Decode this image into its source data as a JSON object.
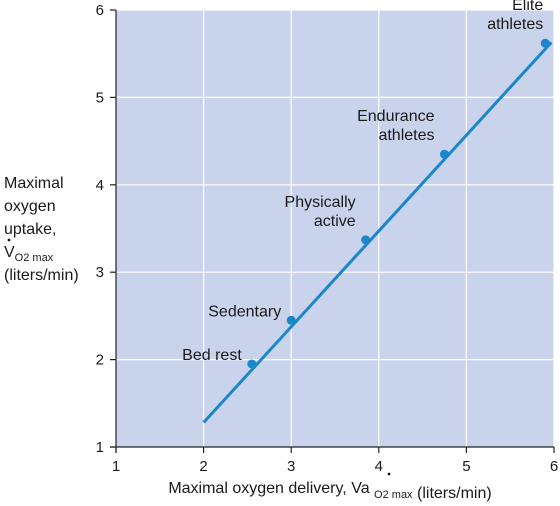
{
  "chart_data": {
    "type": "scatter",
    "xlabel": "Maximal oxygen delivery,",
    "xlabel_symbol": "Va",
    "xlabel_subscript": "O2 max",
    "xlabel_units": "(liters/min)",
    "ylabel_lines": [
      "Maximal",
      "oxygen",
      "uptake,"
    ],
    "ylabel_symbol": "V",
    "ylabel_subscript": "O2 max",
    "ylabel_units": "(liters/min)",
    "xlim": [
      1,
      6
    ],
    "ylim": [
      1,
      6
    ],
    "xticks": [
      1,
      2,
      3,
      4,
      5,
      6
    ],
    "yticks": [
      1,
      2,
      3,
      4,
      5,
      6
    ],
    "grid": true,
    "background": "#c9d3ec",
    "gridline_color": "#ffffff",
    "series_color": "#1b86c9",
    "points": [
      {
        "label": [
          "Bed rest"
        ],
        "x": 2.55,
        "y": 1.95
      },
      {
        "label": [
          "Sedentary"
        ],
        "x": 3.0,
        "y": 2.45
      },
      {
        "label": [
          "Physically",
          "active"
        ],
        "x": 3.85,
        "y": 3.37
      },
      {
        "label": [
          "Endurance",
          "athletes"
        ],
        "x": 4.75,
        "y": 4.35
      },
      {
        "label": [
          "Elite",
          "athletes"
        ],
        "x": 5.9,
        "y": 5.62
      }
    ],
    "trendline": {
      "x": [
        2.0,
        5.97
      ],
      "y": [
        1.28,
        5.63
      ]
    }
  }
}
